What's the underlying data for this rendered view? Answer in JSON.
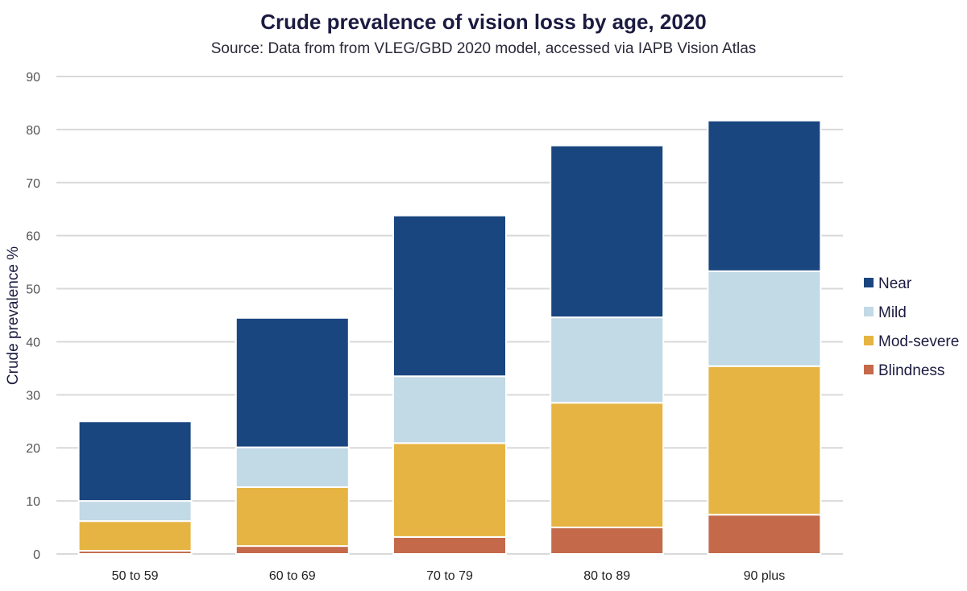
{
  "title": "Crude prevalence of vision loss by age, 2020",
  "subtitle": "Source: Data from from VLEG/GBD 2020 model, accessed via IAPB Vision Atlas",
  "chart_data": {
    "type": "bar",
    "stacked": true,
    "title": "Crude prevalence of vision loss by age, 2020",
    "subtitle": "Source: Data from from VLEG/GBD 2020 model, accessed via IAPB Vision Atlas",
    "xlabel": "",
    "ylabel": "Crude prevalence %",
    "ylim": [
      0,
      90
    ],
    "yticks": [
      0,
      10,
      20,
      30,
      40,
      50,
      60,
      70,
      80,
      90
    ],
    "grid": true,
    "legend_position": "right",
    "categories": [
      "50 to 59",
      "60 to 69",
      "70 to 79",
      "80 to 89",
      "90 plus"
    ],
    "series": [
      {
        "name": "Blindness",
        "color": "#c4694a",
        "values": [
          0.6,
          1.5,
          3.2,
          5.0,
          7.4
        ]
      },
      {
        "name": "Mod-severe",
        "color": "#e6b442",
        "values": [
          5.6,
          11.1,
          17.7,
          23.5,
          28.0
        ]
      },
      {
        "name": "Mild",
        "color": "#c2d9e6",
        "values": [
          3.8,
          7.5,
          12.6,
          16.1,
          17.9
        ]
      },
      {
        "name": "Near",
        "color": "#1a4680",
        "values": [
          15.0,
          24.4,
          30.3,
          32.4,
          28.4
        ]
      }
    ],
    "legend_order": [
      "Near",
      "Mild",
      "Mod-severe",
      "Blindness"
    ]
  }
}
